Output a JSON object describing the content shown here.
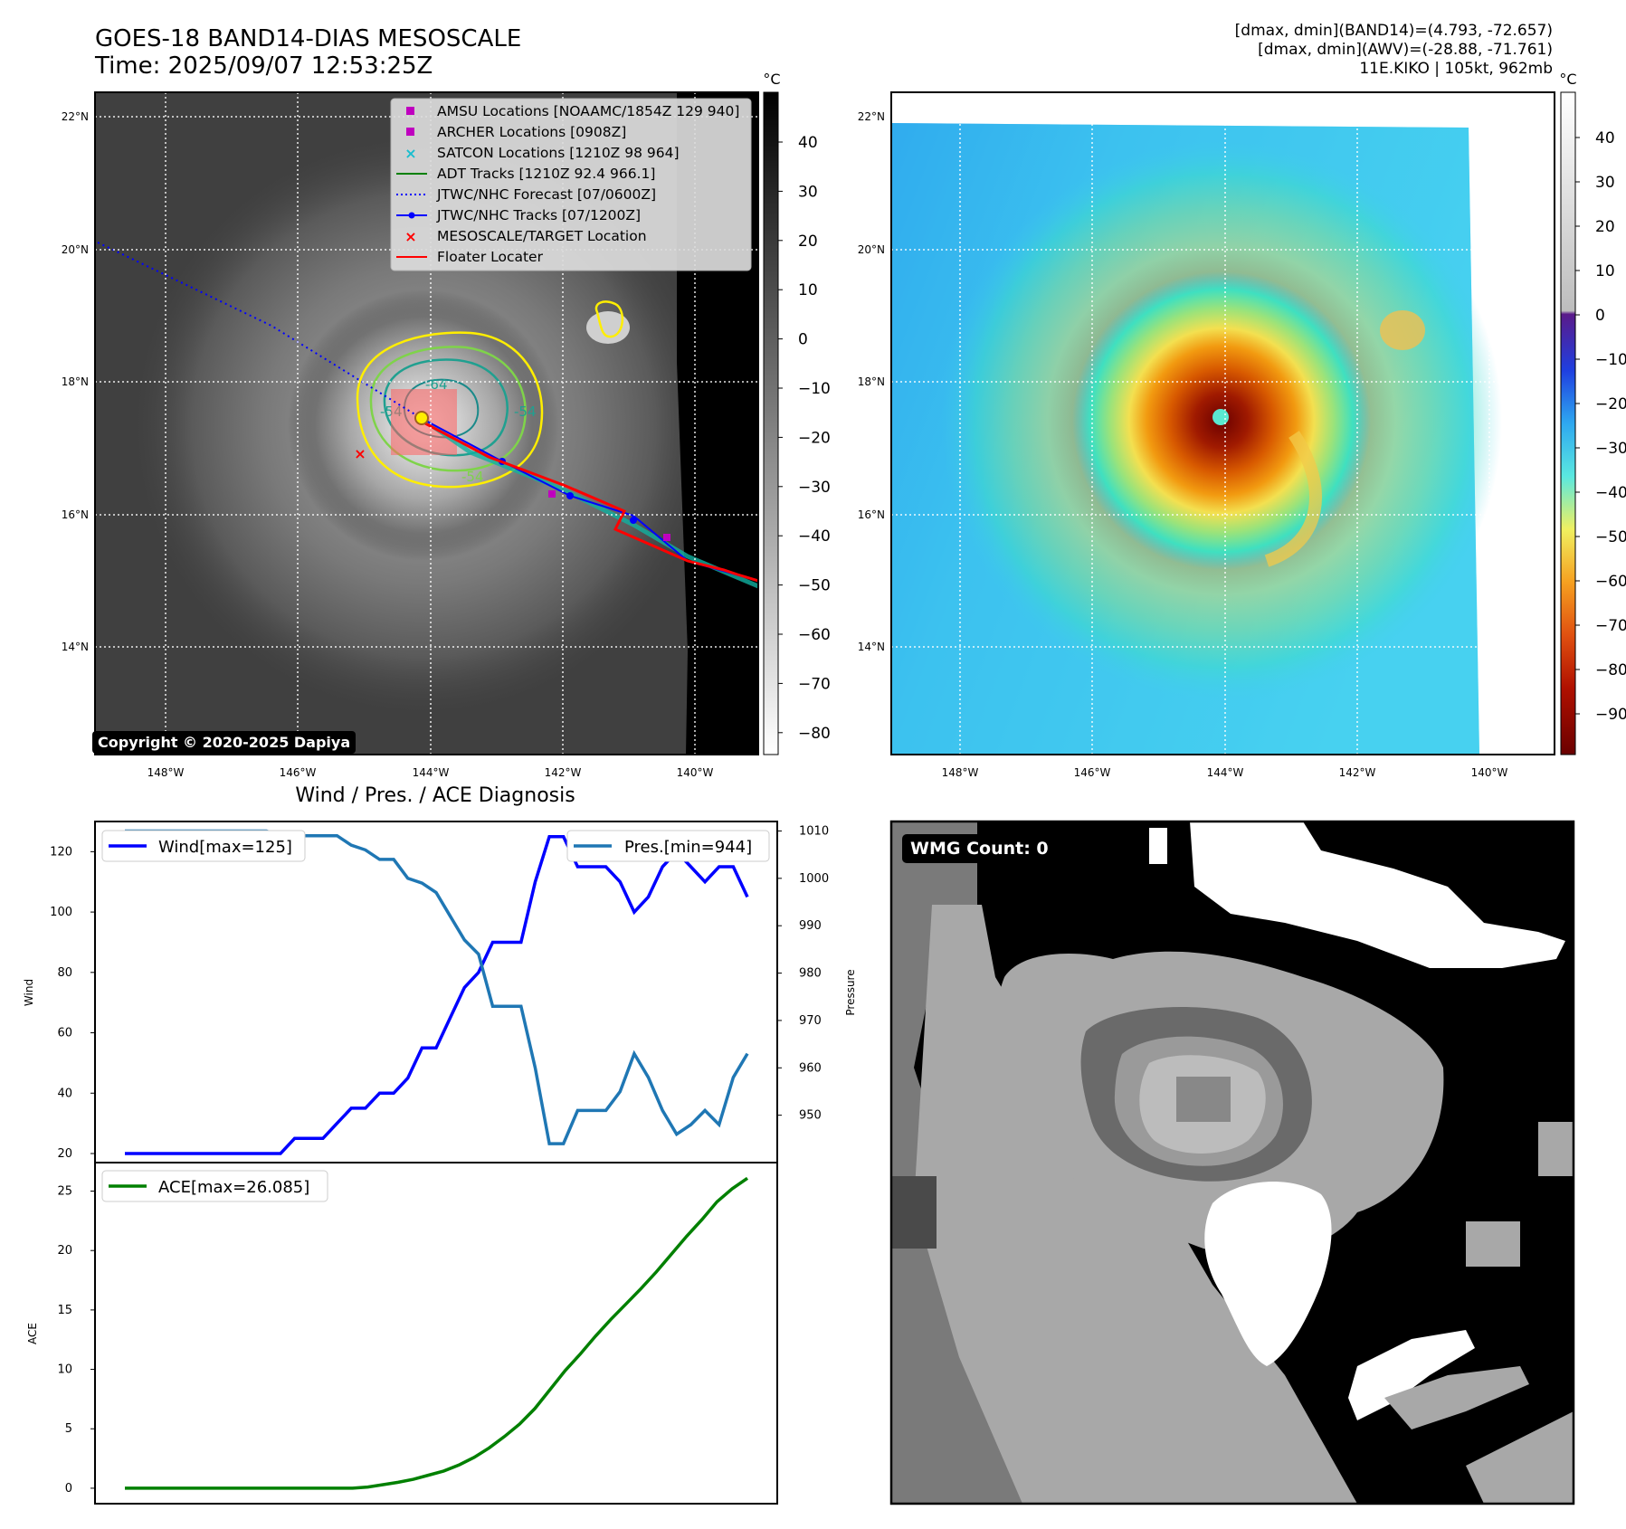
{
  "header": {
    "title_line1": "GOES-18 BAND14-DIAS MESOSCALE",
    "title_line2": "Time: 2025/09/07 12:53:25Z",
    "info_line1": "[dmax, dmin](BAND14)=(4.793, -72.657)",
    "info_line2": "[dmax, dmin](AWV)=(-28.88, -71.761)",
    "info_line3": "11E.KIKO | 105kt, 962mb"
  },
  "map_axes": {
    "lat_labels": [
      "22°N",
      "20°N",
      "18°N",
      "16°N",
      "14°N"
    ],
    "lon_labels": [
      "148°W",
      "146°W",
      "144°W",
      "142°W",
      "140°W"
    ]
  },
  "ir_colorbar": {
    "unit": "°C",
    "ticks": [
      "40",
      "30",
      "20",
      "10",
      "0",
      "−10",
      "−20",
      "−30",
      "−40",
      "−50",
      "−60",
      "−70",
      "−80"
    ]
  },
  "wv_colorbar": {
    "unit": "°C",
    "ticks": [
      "40",
      "30",
      "20",
      "10",
      "0",
      "−10",
      "−20",
      "−30",
      "−40",
      "−50",
      "−60",
      "−70",
      "−80",
      "−90"
    ]
  },
  "legend": [
    {
      "label": "AMSU Locations [NOAAMC/1854Z 129 940]",
      "marker": "square",
      "color": "#bf00bf"
    },
    {
      "label": "ARCHER Locations [0908Z]",
      "marker": "square",
      "color": "#bf00bf"
    },
    {
      "label": "SATCON Locations [1210Z 98 964]",
      "marker": "x",
      "color": "#17becf"
    },
    {
      "label": "ADT Tracks [1210Z 92.4 966.1]",
      "marker": "line",
      "color": "#008000"
    },
    {
      "label": "JTWC/NHC Forecast [07/0600Z]",
      "marker": "dotted",
      "color": "#0000ff"
    },
    {
      "label": "JTWC/NHC Tracks [07/1200Z]",
      "marker": "line-dot",
      "color": "#0000ff"
    },
    {
      "label": "MESOSCALE/TARGET Location",
      "marker": "x",
      "color": "#ff0000"
    },
    {
      "label": "Floater Locater",
      "marker": "line",
      "color": "#ff0000"
    }
  ],
  "contour_labels": [
    "-64",
    "-54",
    "-54",
    "-54"
  ],
  "copyright": "Copyright © 2020-2025 Dapiya",
  "wmg_count": "WMG Count: 0",
  "chart_data": [
    {
      "type": "line",
      "title": "Wind / Pres. / ACE Diagnosis",
      "xlabel": "",
      "ylabel": "Wind",
      "ylabel_right": "Pressure",
      "ylim": [
        17,
        130
      ],
      "ylim_right": [
        940,
        1012
      ],
      "yticks": [
        20,
        40,
        60,
        80,
        100,
        120
      ],
      "yticks_right": [
        950,
        960,
        970,
        980,
        990,
        1000,
        1010
      ],
      "series": [
        {
          "name": "Wind[max=125]",
          "color": "#0000ff",
          "axis": "left",
          "values": [
            20,
            20,
            20,
            20,
            20,
            20,
            20,
            20,
            20,
            20,
            20,
            20,
            25,
            25,
            25,
            30,
            35,
            35,
            40,
            40,
            45,
            55,
            55,
            65,
            75,
            80,
            90,
            90,
            90,
            110,
            125,
            125,
            115,
            115,
            115,
            110,
            100,
            105,
            115,
            120,
            115,
            110,
            115,
            115,
            105
          ]
        },
        {
          "name": "Pres.[min=944]",
          "color": "#1f77b4",
          "axis": "right",
          "values": [
            1010,
            1010,
            1010,
            1010,
            1010,
            1010,
            1010,
            1010,
            1010,
            1010,
            1010,
            1009,
            1009,
            1009,
            1009,
            1009,
            1007,
            1006,
            1004,
            1004,
            1000,
            999,
            997,
            992,
            987,
            984,
            973,
            973,
            973,
            960,
            944,
            944,
            951,
            951,
            951,
            955,
            963,
            958,
            951,
            946,
            948,
            951,
            948,
            958,
            963
          ]
        }
      ]
    },
    {
      "type": "line",
      "title": "",
      "xlabel": "",
      "ylabel": "ACE",
      "ylim": [
        -1.3,
        27.4
      ],
      "yticks": [
        0,
        5,
        10,
        15,
        20,
        25
      ],
      "series": [
        {
          "name": "ACE[max=26.085]",
          "color": "#008000",
          "values": [
            0,
            0,
            0,
            0,
            0,
            0,
            0,
            0,
            0,
            0,
            0,
            0,
            0,
            0,
            0,
            0,
            0.1,
            0.3,
            0.5,
            0.75,
            1.1,
            1.45,
            1.95,
            2.6,
            3.4,
            4.35,
            5.4,
            6.7,
            8.3,
            9.9,
            11.3,
            12.8,
            14.2,
            15.5,
            16.8,
            18.2,
            19.7,
            21.2,
            22.6,
            24.1,
            25.2,
            26.085
          ]
        }
      ]
    }
  ]
}
